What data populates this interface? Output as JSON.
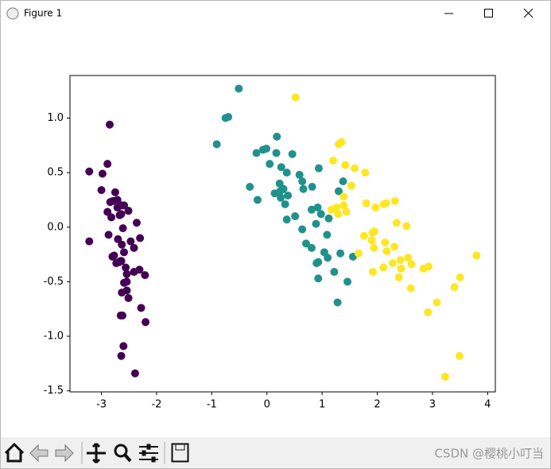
{
  "window": {
    "title": "Figure 1",
    "watermark": "CSDN @樱桃小叮当"
  },
  "chart_data": {
    "type": "scatter",
    "xlim": [
      -3.57,
      4.14
    ],
    "ylim": [
      -1.51,
      1.39
    ],
    "xticks": [
      -3,
      -2,
      -1,
      0,
      1,
      2,
      3,
      4
    ],
    "yticks": [
      -1.5,
      {
        "value": -1,
        "label": "-1.0"
      },
      -0.5,
      {
        "value": 0,
        "label": "0.0"
      },
      0.5,
      {
        "value": 1,
        "label": "1.0"
      }
    ],
    "series": [
      {
        "color": "#440154",
        "x": [
          -2.68,
          -2.71,
          -2.89,
          -2.75,
          -2.73,
          -2.28,
          -2.82,
          -2.63,
          -2.89,
          -2.67,
          -2.51,
          -2.61,
          -2.79,
          -3.22,
          -2.64,
          -2.39,
          -2.62,
          -2.65,
          -2.2,
          -2.59,
          -2.31,
          -2.54,
          -3.22,
          -2.3,
          -2.36,
          -2.51,
          -2.47,
          -2.56,
          -2.64,
          -2.63,
          -2.59,
          -2.41,
          -2.65,
          -2.6,
          -2.64,
          -2.87,
          -2.63,
          -2.8,
          -2.98,
          -2.59,
          -2.77,
          -2.85,
          -3.0,
          -2.41,
          -2.21,
          -2.71,
          -2.54,
          -2.84,
          -2.54,
          -2.7
        ],
        "values": [
          -0.32,
          0.18,
          0.14,
          0.32,
          -0.33,
          -0.74,
          0.09,
          -0.16,
          0.58,
          0.11,
          -0.65,
          -0.01,
          0.24,
          0.51,
          -1.18,
          -1.34,
          -0.81,
          -0.31,
          -0.87,
          -0.51,
          -0.39,
          -0.43,
          -0.13,
          -0.1,
          0.04,
          0.15,
          -0.13,
          -0.37,
          -0.31,
          0.2,
          0.2,
          -0.41,
          -0.81,
          -1.09,
          0.12,
          -0.07,
          -0.6,
          -0.27,
          0.49,
          -0.23,
          -0.26,
          0.94,
          0.34,
          -0.19,
          -0.44,
          0.25,
          -0.5,
          0.23,
          -0.58,
          -0.11
        ]
      },
      {
        "color": "#21918c",
        "x": [
          1.28,
          0.93,
          1.46,
          0.18,
          1.09,
          0.64,
          1.1,
          -0.75,
          1.04,
          -0.01,
          -0.51,
          0.51,
          0.26,
          0.98,
          -0.17,
          0.93,
          0.66,
          0.24,
          0.94,
          0.05,
          1.12,
          0.36,
          1.3,
          0.92,
          0.71,
          0.9,
          1.33,
          1.56,
          0.81,
          -0.31,
          -0.07,
          -0.19,
          0.14,
          1.38,
          0.59,
          0.81,
          1.22,
          0.82,
          0.25,
          0.17,
          0.46,
          0.89,
          0.23,
          -0.7,
          0.36,
          0.33,
          0.38,
          0.64,
          -0.91,
          0.3
        ],
        "values": [
          -0.69,
          -0.32,
          -0.5,
          0.83,
          -0.07,
          0.42,
          -0.28,
          1.0,
          -0.23,
          0.72,
          1.27,
          0.1,
          0.55,
          0.12,
          0.25,
          -0.47,
          0.35,
          0.33,
          0.54,
          0.58,
          0.08,
          0.07,
          0.33,
          0.18,
          -0.15,
          -0.33,
          -0.24,
          -0.27,
          0.16,
          0.37,
          0.71,
          0.68,
          0.31,
          0.42,
          0.48,
          -0.19,
          -0.41,
          0.37,
          0.27,
          0.68,
          0.67,
          0.03,
          0.4,
          1.01,
          0.5,
          0.21,
          0.29,
          -0.02,
          0.76,
          0.35
        ]
      },
      {
        "color": "#fde725",
        "x": [
          2.53,
          1.42,
          2.62,
          1.97,
          2.35,
          3.4,
          0.52,
          2.93,
          2.32,
          2.92,
          1.66,
          1.8,
          2.17,
          1.35,
          1.59,
          1.9,
          1.95,
          3.49,
          3.8,
          1.3,
          2.43,
          1.2,
          3.5,
          1.39,
          2.28,
          2.61,
          1.26,
          1.29,
          2.12,
          2.39,
          2.84,
          3.23,
          2.16,
          1.44,
          1.78,
          3.08,
          2.14,
          1.91,
          1.17,
          2.11,
          2.31,
          1.92,
          1.42,
          2.56,
          2.42,
          1.94,
          1.53,
          1.76,
          1.9,
          1.39
        ],
        "values": [
          0.01,
          0.57,
          -0.34,
          0.18,
          0.04,
          -0.55,
          1.19,
          -0.36,
          0.24,
          -0.78,
          -0.24,
          0.22,
          -0.22,
          0.78,
          0.54,
          -0.12,
          -0.04,
          -1.18,
          -0.26,
          0.76,
          -0.38,
          0.61,
          -0.46,
          0.2,
          -0.33,
          -0.56,
          0.18,
          0.12,
          0.21,
          -0.46,
          -0.38,
          -1.37,
          0.22,
          0.14,
          0.5,
          -0.69,
          -0.14,
          -0.05,
          0.16,
          -0.37,
          -0.18,
          -0.41,
          0.57,
          -0.28,
          -0.3,
          -0.19,
          0.38,
          -0.08,
          -0.12,
          0.28
        ]
      }
    ]
  }
}
